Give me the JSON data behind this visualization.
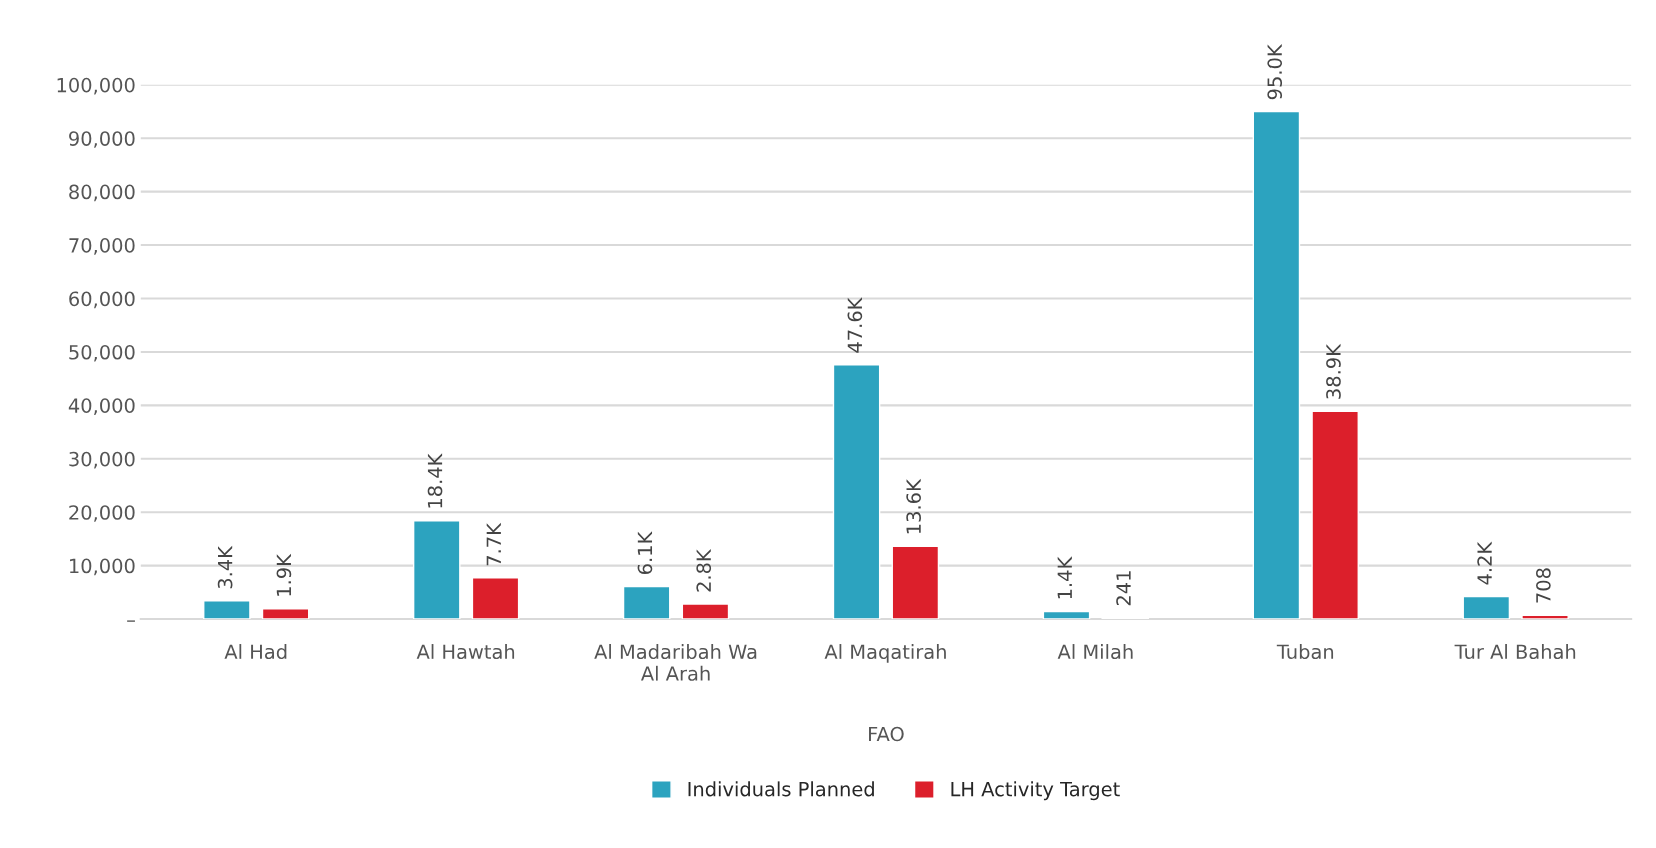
{
  "chart_data": {
    "type": "bar",
    "xlabel": "FAO",
    "categories": [
      "Al Had",
      "Al Hawtah",
      "Al Madaribah Wa Al Arah",
      "Al Maqatirah",
      "Al Milah",
      "Tuban",
      "Tur Al Bahah"
    ],
    "series": [
      {
        "name": "Individuals Planned",
        "color": "#2ca3bf",
        "values": [
          3400,
          18400,
          6100,
          47600,
          1400,
          95000,
          4200
        ],
        "value_labels": [
          "3.4K",
          "18.4K",
          "6.1K",
          "47.6K",
          "1.4K",
          "95.0K",
          "4.2K"
        ]
      },
      {
        "name": "LH Activity Target",
        "color": "#dc1f2b",
        "values": [
          1900,
          7700,
          2800,
          13600,
          241,
          38900,
          708
        ],
        "value_labels": [
          "1.9K",
          "7.7K",
          "2.8K",
          "13.6K",
          "241",
          "38.9K",
          "708"
        ]
      }
    ],
    "ylim": [
      0,
      100000
    ],
    "yticks": [
      {
        "value": 0,
        "label": "–"
      },
      {
        "value": 10000,
        "label": "10,000"
      },
      {
        "value": 20000,
        "label": "20,000"
      },
      {
        "value": 30000,
        "label": "30,000"
      },
      {
        "value": 40000,
        "label": "40,000"
      },
      {
        "value": 50000,
        "label": "50,000"
      },
      {
        "value": 60000,
        "label": "60,000"
      },
      {
        "value": 70000,
        "label": "70,000"
      },
      {
        "value": 80000,
        "label": "80,000"
      },
      {
        "value": 90000,
        "label": "90,000"
      },
      {
        "value": 100000,
        "label": "100,000"
      }
    ],
    "grid": "y",
    "legend": "bottom"
  }
}
